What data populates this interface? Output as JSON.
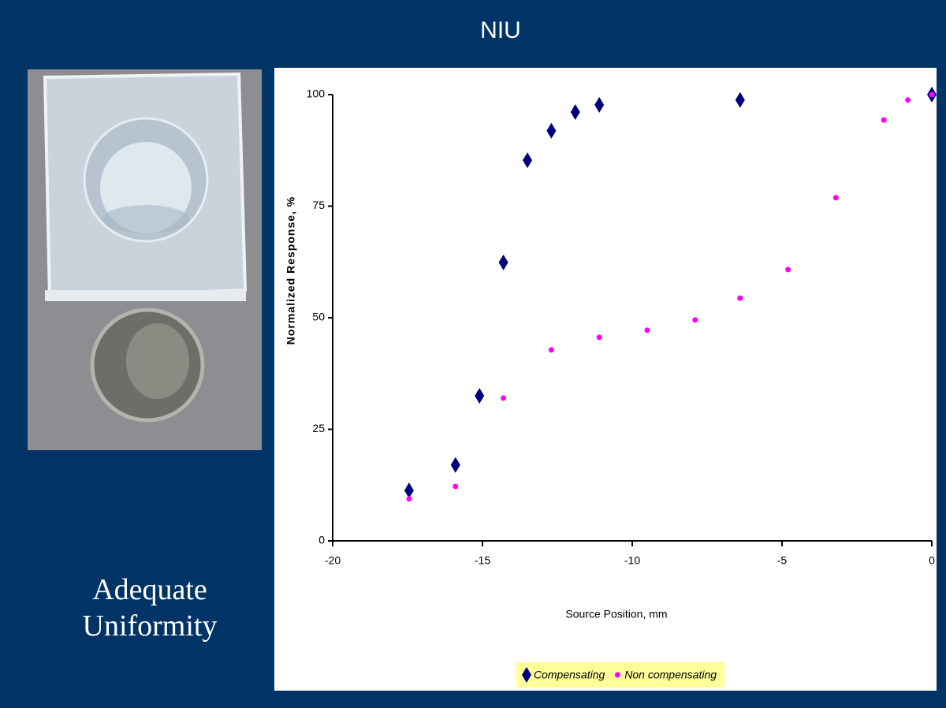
{
  "slide": {
    "title": "NIU",
    "caption": "Adequate Uniformity"
  },
  "chart_data": {
    "type": "scatter",
    "xlabel": "Source Position, mm",
    "ylabel": "Normalized Response, %",
    "xlim": [
      -20,
      0
    ],
    "ylim": [
      0,
      100
    ],
    "xticks": [
      -20,
      -15,
      -10,
      -5,
      0
    ],
    "yticks": [
      0,
      25,
      50,
      75,
      100
    ],
    "grid": false,
    "legend": "bottom",
    "series": [
      {
        "name": "Compensating",
        "color": "#00007f",
        "marker": "diamond",
        "x": [
          -17.45,
          -15.9,
          -15.1,
          -14.3,
          -13.5,
          -12.7,
          -11.9,
          -11.1,
          -6.4,
          0
        ],
        "values": [
          11.3,
          17.0,
          32.5,
          62.4,
          85.3,
          91.9,
          96.1,
          97.7,
          98.8,
          100
        ]
      },
      {
        "name": "Non compensating",
        "color": "#ff00ff",
        "marker": "circle",
        "x": [
          -17.45,
          -15.9,
          -14.3,
          -12.7,
          -11.1,
          -9.5,
          -7.9,
          -6.4,
          -4.8,
          -3.2,
          -1.6,
          -0.8,
          0
        ],
        "values": [
          9.4,
          12.2,
          32.0,
          42.8,
          45.6,
          47.2,
          49.5,
          54.4,
          60.8,
          76.9,
          94.3,
          98.8,
          100
        ]
      }
    ]
  }
}
